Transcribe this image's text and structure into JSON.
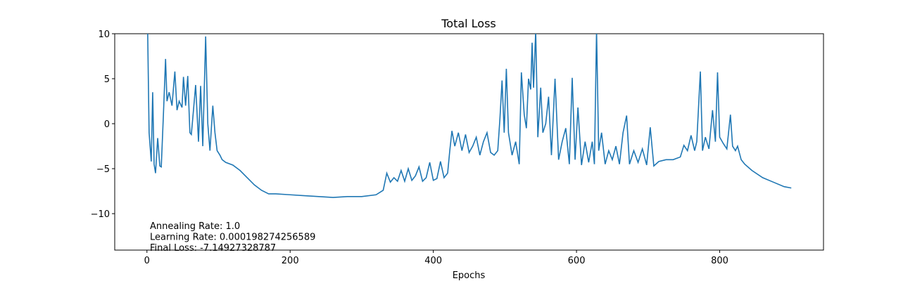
{
  "chart_data": {
    "type": "line",
    "title": "Total Loss",
    "x_label": "Epochs",
    "annotations": [
      "Annealing Rate: 1.0",
      "Learning Rate: 0.000198274256589",
      "Final Loss: -7.14927328787"
    ],
    "xlim": [
      -45,
      945
    ],
    "ylim": [
      -14.05,
      10
    ],
    "xticks": [
      0,
      200,
      400,
      600,
      800
    ],
    "yticks": [
      {
        "value": -10,
        "label": "−10"
      },
      {
        "value": -5,
        "label": "−5"
      },
      0,
      5,
      10
    ],
    "series": [
      {
        "name": "Total Loss",
        "color": "#1f77b4",
        "x": [
          0,
          3,
          6,
          8,
          10,
          12,
          15,
          18,
          20,
          23,
          26,
          28,
          31,
          35,
          39,
          42,
          45,
          49,
          51,
          54,
          57,
          60,
          62,
          65,
          68,
          72,
          75,
          78,
          82,
          85,
          88,
          92,
          95,
          98,
          102,
          105,
          110,
          120,
          130,
          140,
          150,
          160,
          170,
          180,
          200,
          220,
          240,
          260,
          280,
          300,
          320,
          330,
          335,
          340,
          345,
          350,
          355,
          360,
          365,
          370,
          375,
          380,
          385,
          390,
          395,
          400,
          405,
          410,
          415,
          420,
          423,
          426,
          430,
          435,
          440,
          445,
          450,
          455,
          460,
          465,
          470,
          475,
          480,
          485,
          490,
          493,
          496,
          499,
          502,
          505,
          510,
          515,
          520,
          523,
          527,
          530,
          533,
          536,
          538,
          540,
          543,
          546,
          550,
          553,
          557,
          561,
          565,
          570,
          575,
          580,
          585,
          590,
          594,
          598,
          602,
          607,
          612,
          617,
          622,
          625,
          628,
          631,
          635,
          640,
          645,
          650,
          655,
          660,
          665,
          670,
          674,
          680,
          686,
          692,
          698,
          703,
          708,
          715,
          725,
          735,
          745,
          750,
          755,
          760,
          765,
          768,
          773,
          776,
          780,
          785,
          790,
          794,
          797,
          800,
          805,
          810,
          815,
          818,
          822,
          825,
          830,
          835,
          845,
          860,
          875,
          890,
          900
        ],
        "values": [
          16,
          -1,
          -4.2,
          3.5,
          -4.5,
          -5.5,
          -1.6,
          -4.7,
          -4.8,
          1,
          7.2,
          2.5,
          3.5,
          2,
          5.8,
          1.5,
          2.5,
          1.8,
          5.2,
          2,
          5.3,
          -1,
          -1.2,
          1.5,
          4.3,
          -2,
          4.2,
          -2.5,
          9.7,
          0,
          -3,
          2,
          -1,
          -3,
          -3.5,
          -4,
          -4.3,
          -4.6,
          -5.2,
          -6,
          -6.8,
          -7.4,
          -7.8,
          -7.8,
          -7.9,
          -8,
          -8.1,
          -8.2,
          -8.1,
          -8.1,
          -7.9,
          -7.4,
          -5.5,
          -6.5,
          -6,
          -6.4,
          -5.2,
          -6.4,
          -5,
          -6.3,
          -5.8,
          -4.8,
          -6.4,
          -6,
          -4.3,
          -6.3,
          -6.1,
          -4.2,
          -6,
          -5.5,
          -3,
          -0.8,
          -2.5,
          -1,
          -3,
          -1.2,
          -3.2,
          -2.5,
          -1.5,
          -3.5,
          -2,
          -1,
          -3.2,
          -3.5,
          -3,
          0.5,
          4.8,
          -1,
          6.1,
          -1,
          -3.5,
          -2,
          -4.5,
          5.7,
          1,
          -0.5,
          5,
          3.8,
          9,
          4,
          10.3,
          -1.5,
          4,
          -1,
          0,
          3,
          -3.5,
          5,
          -4,
          -2,
          -0.5,
          -4.5,
          5.1,
          -4,
          1.8,
          -4.6,
          -2,
          -4.3,
          -2,
          -4.5,
          10.4,
          -3,
          -1,
          -4.5,
          -3,
          -4,
          -2.5,
          -4.5,
          -1,
          0.9,
          -4.5,
          -3,
          -4.3,
          -2.8,
          -4.6,
          -0.4,
          -4.7,
          -4.2,
          -4,
          -4,
          -3.7,
          -2.4,
          -3,
          -1.3,
          -3,
          -2,
          5.8,
          -3,
          -1.5,
          -2.8,
          1.5,
          -2,
          5.7,
          -1.5,
          -2.2,
          -2.8,
          1,
          -2.5,
          -3,
          -2.5,
          -4,
          -4.5,
          -5.2,
          -6,
          -6.5,
          -7,
          -7.15
        ]
      }
    ]
  }
}
